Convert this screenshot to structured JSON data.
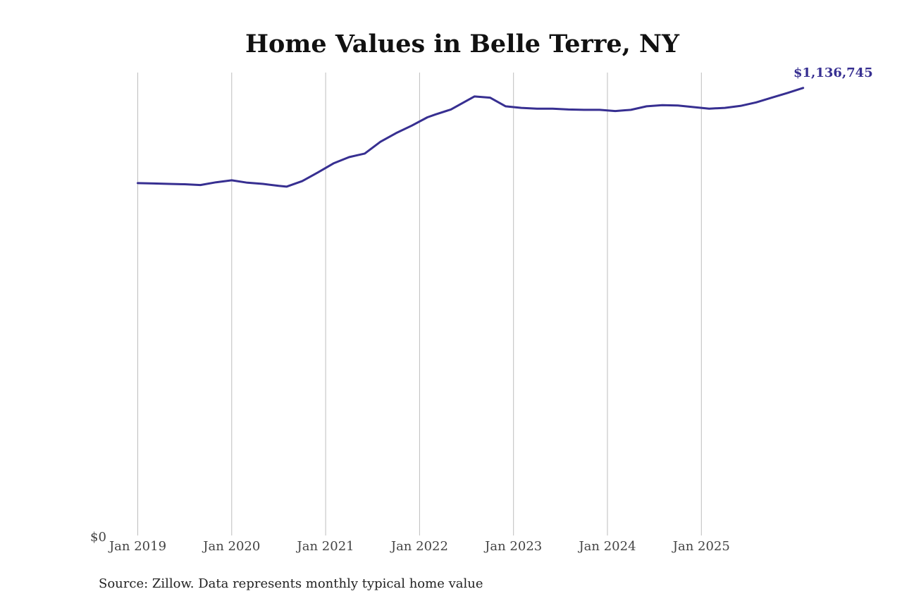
{
  "chart_data": {
    "type": "line",
    "title": "Home Values in Belle Terre, NY",
    "xlabel": "",
    "ylabel": "",
    "x_ticks": [
      "Jan 2019",
      "Jan 2020",
      "Jan 2021",
      "Jan 2022",
      "Jan 2023",
      "Jan 2024",
      "Jan 2025"
    ],
    "y_ticks": [
      "$0"
    ],
    "ylim": [
      0,
      1190000
    ],
    "grid": "vertical",
    "line_color": "#372f91",
    "end_label": "$1,136,745",
    "series": [
      {
        "points": [
          [
            "2019-01",
            895000
          ],
          [
            "2019-03",
            894000
          ],
          [
            "2019-05",
            893000
          ],
          [
            "2019-07",
            892000
          ],
          [
            "2019-09",
            890000
          ],
          [
            "2019-11",
            897000
          ],
          [
            "2020-01",
            902000
          ],
          [
            "2020-03",
            896000
          ],
          [
            "2020-05",
            893000
          ],
          [
            "2020-07",
            888000
          ],
          [
            "2020-08",
            886000
          ],
          [
            "2020-10",
            900000
          ],
          [
            "2020-12",
            922000
          ],
          [
            "2021-02",
            945000
          ],
          [
            "2021-04",
            961000
          ],
          [
            "2021-06",
            970000
          ],
          [
            "2021-08",
            1000000
          ],
          [
            "2021-10",
            1022000
          ],
          [
            "2021-12",
            1041000
          ],
          [
            "2022-02",
            1062000
          ],
          [
            "2022-03",
            1069000
          ],
          [
            "2022-05",
            1082000
          ],
          [
            "2022-07",
            1104000
          ],
          [
            "2022-08",
            1115000
          ],
          [
            "2022-10",
            1112000
          ],
          [
            "2022-12",
            1090000
          ],
          [
            "2023-02",
            1086000
          ],
          [
            "2023-04",
            1084000
          ],
          [
            "2023-06",
            1084000
          ],
          [
            "2023-08",
            1082000
          ],
          [
            "2023-10",
            1081000
          ],
          [
            "2023-12",
            1081000
          ],
          [
            "2024-02",
            1078000
          ],
          [
            "2024-04",
            1081000
          ],
          [
            "2024-06",
            1090000
          ],
          [
            "2024-08",
            1093000
          ],
          [
            "2024-10",
            1092000
          ],
          [
            "2024-12",
            1088000
          ],
          [
            "2025-02",
            1084000
          ],
          [
            "2025-04",
            1086000
          ],
          [
            "2025-06",
            1091000
          ],
          [
            "2025-08",
            1100000
          ],
          [
            "2025-10",
            1112000
          ],
          [
            "2025-12",
            1124000
          ],
          [
            "2026-02",
            1136745
          ]
        ]
      }
    ]
  },
  "source_note": "Source: Zillow. Data represents monthly typical home value"
}
